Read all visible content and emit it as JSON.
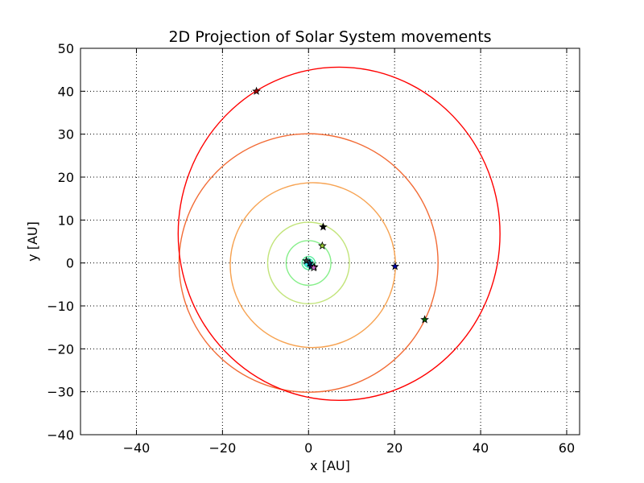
{
  "chart_data": {
    "type": "line",
    "title": "2D Projection of Solar System movements",
    "xlabel": "x [AU]",
    "ylabel": "y [AU]",
    "xlim": [
      -53,
      63
    ],
    "ylim": [
      -40,
      50
    ],
    "xticks": [
      -40,
      -20,
      0,
      20,
      40,
      60
    ],
    "yticks": [
      -40,
      -30,
      -20,
      -10,
      0,
      10,
      20,
      30,
      40,
      50
    ],
    "grid": true,
    "grid_style": "dotted",
    "legend": "none",
    "background_color": "#ffffff",
    "series": [
      {
        "orbit": {
          "cx": 0.0,
          "cy": 0.0,
          "rx": 0.39,
          "ry": 0.39
        },
        "color": "#00d8ff",
        "marker": {
          "x": 0.3,
          "y": -0.1
        },
        "marker_color": "#003366"
      },
      {
        "orbit": {
          "cx": 0.0,
          "cy": 0.0,
          "rx": 0.72,
          "ry": 0.72
        },
        "color": "#1fe3e0",
        "marker": {
          "x": -0.5,
          "y": 0.5
        },
        "marker_color": "#333333"
      },
      {
        "orbit": {
          "cx": 0.0,
          "cy": 0.0,
          "rx": 1.0,
          "ry": 1.0
        },
        "color": "#33e8b8",
        "marker": {
          "x": 0.6,
          "y": -0.8
        },
        "marker_color": "#0000aa"
      },
      {
        "orbit": {
          "cx": 0.0,
          "cy": 0.0,
          "rx": 1.52,
          "ry": 1.52
        },
        "color": "#55ec9a",
        "marker": {
          "x": 1.3,
          "y": -0.9
        },
        "marker_color": "#5c0000"
      },
      {
        "orbit": {
          "cx": 0.0,
          "cy": 0.0,
          "rx": 5.2,
          "ry": 5.2
        },
        "color": "#86ef8a",
        "marker": {
          "x": 1.2,
          "y": -1.1
        },
        "marker_color": "#cc66cc"
      },
      {
        "orbit": {
          "cx": 0.0,
          "cy": 0.0,
          "rx": 9.5,
          "ry": 9.5
        },
        "color": "#c2e47a",
        "marker": {
          "x": 3.2,
          "y": 4.0
        },
        "marker_color": "#99cc33"
      },
      {
        "orbit": {
          "cx": 1.0,
          "cy": -0.5,
          "rx": 19.2,
          "ry": 19.2
        },
        "color": "#f7a352",
        "marker": {
          "x": 3.4,
          "y": 8.4
        },
        "marker_color": "#000000"
      },
      {
        "orbit": {
          "cx": 0.0,
          "cy": 0.0,
          "rx": 30.1,
          "ry": 30.1
        },
        "color": "#f26b35",
        "marker": {
          "x": 20.1,
          "y": -0.8
        },
        "marker_color": "#0000aa"
      },
      {
        "orbit": {
          "cx": 7.1,
          "cy": 6.8,
          "rx": 37.4,
          "ry": 38.8
        },
        "color": "#ff0000",
        "marker": {
          "x": -12.1,
          "y": 40.0
        },
        "marker_color": "#aa0000"
      },
      {
        "orbit": null,
        "color": null,
        "marker": {
          "x": 27.0,
          "y": -13.2
        },
        "marker_color": "#006600"
      }
    ]
  }
}
